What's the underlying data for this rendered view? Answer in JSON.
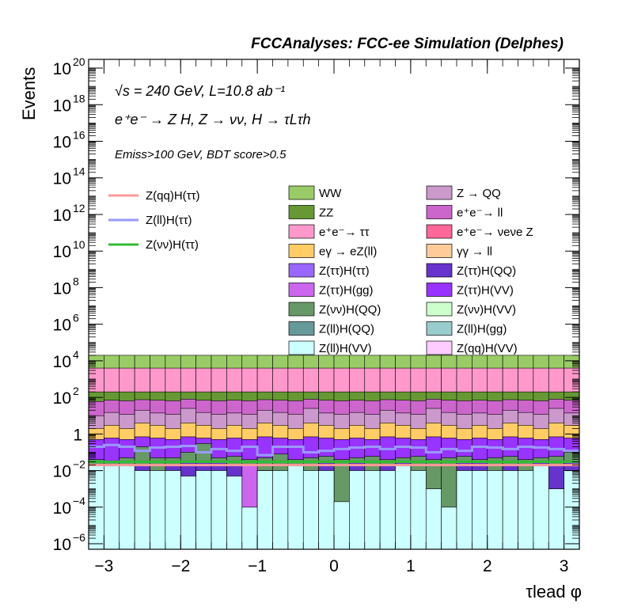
{
  "chart_data": {
    "type": "bar",
    "stacked": true,
    "header": "FCCAnalyses: FCC-ee Simulation (Delphes)",
    "annotations": [
      "√s = 240 GeV, L=10.8 ab⁻¹",
      "e⁺e⁻ → Z H, Z → νν, H → τLτh",
      "Emiss>100 GeV, BDT score>0.5"
    ],
    "xlabel": "τlead φ",
    "ylabel": "Events",
    "yscale": "log",
    "xlim": [
      -3.2,
      3.2
    ],
    "ylim": [
      5e-07,
      3e+20
    ],
    "xticks": [
      "−3",
      "−2",
      "−1",
      "0",
      "1",
      "2",
      "3"
    ],
    "xtick_values": [
      -3,
      -2,
      -1,
      0,
      1,
      2,
      3
    ],
    "yticks": [
      {
        "base": "10",
        "exp": "−6",
        "value": 1e-06
      },
      {
        "base": "10",
        "exp": "−4",
        "value": 0.0001
      },
      {
        "base": "10",
        "exp": "−2",
        "value": 0.01
      },
      {
        "base": "1",
        "exp": "",
        "value": 1
      },
      {
        "base": "10",
        "exp": "2",
        "value": 100.0
      },
      {
        "base": "10",
        "exp": "4",
        "value": 10000.0
      },
      {
        "base": "10",
        "exp": "6",
        "value": 1000000.0
      },
      {
        "base": "10",
        "exp": "8",
        "value": 100000000.0
      },
      {
        "base": "10",
        "exp": "10",
        "value": 10000000000.0
      },
      {
        "base": "10",
        "exp": "12",
        "value": 1000000000000.0
      },
      {
        "base": "10",
        "exp": "14",
        "value": 100000000000000.0
      },
      {
        "base": "10",
        "exp": "16",
        "value": 1e+16
      },
      {
        "base": "10",
        "exp": "18",
        "value": 1e+18
      },
      {
        "base": "10",
        "exp": "20",
        "value": 1e+20
      }
    ],
    "bins": 32,
    "stack_totals": [
      20000,
      20000,
      20000,
      20000,
      20000,
      20000,
      20000,
      20000,
      20000,
      20000,
      20000,
      20000,
      20000,
      20000,
      20000,
      20000,
      20000,
      20000,
      20000,
      20000,
      20000,
      20000,
      20000,
      20000,
      20000,
      20000,
      20000,
      20000,
      20000,
      20000,
      20000,
      20000
    ],
    "stack_layers": [
      {
        "name": "Z(ll)H(VV)",
        "color": "#ccffff",
        "top": [
          0.02,
          0.02,
          0.02,
          0.01,
          0.01,
          0.01,
          0.005,
          0.01,
          0.01,
          0.005,
          0.0001,
          0.01,
          0.01,
          0.02,
          0.01,
          0.01,
          0.0002,
          0.01,
          0.01,
          0.01,
          0.02,
          0.01,
          0.001,
          0.0001,
          0.01,
          0.01,
          0.01,
          0.01,
          0.01,
          0.02,
          0.001,
          0.01
        ]
      },
      {
        "name": "Z(ττ)H(QQ)",
        "color": "#6633cc",
        "top": [
          0.02,
          1e-05,
          1e-05,
          0.02,
          1e-05,
          0.02,
          0.03,
          0.03,
          0.03,
          0.02,
          0.0001,
          0.01,
          0.0003,
          0.02,
          0.0002,
          0.03,
          0.0002,
          0.03,
          0.0001,
          0.02,
          0.03,
          0.001,
          0.0002,
          0.0001,
          0.03,
          0.03,
          0.0002,
          0.02,
          1e-05,
          0.03,
          0.02,
          0.03
        ]
      },
      {
        "name": "Z(ττ)H(gg)",
        "color": "#cc66ee",
        "top": [
          0.02,
          1e-05,
          1e-05,
          0.02,
          1e-05,
          0.02,
          0.03,
          0.03,
          0.03,
          0.02,
          0.02,
          0.01,
          0.0003,
          0.02,
          0.0002,
          0.03,
          0.0002,
          0.03,
          0.0001,
          0.02,
          0.03,
          0.001,
          0.0002,
          0.0001,
          0.03,
          0.03,
          0.0002,
          0.02,
          1e-05,
          0.03,
          0.02,
          0.03
        ]
      },
      {
        "name": "Z(ll)H(gg)",
        "color": "#99cccc",
        "top": [
          0.02,
          1e-05,
          1e-05,
          0.02,
          1e-05,
          0.02,
          0.03,
          0.03,
          0.03,
          0.02,
          0.02,
          0.01,
          0.0003,
          0.02,
          0.0002,
          0.03,
          0.0002,
          0.03,
          0.0001,
          0.02,
          0.03,
          0.001,
          0.0002,
          0.0001,
          0.03,
          0.03,
          0.0002,
          0.02,
          1e-05,
          0.03,
          0.02,
          0.03
        ]
      },
      {
        "name": "Z(νν)H(QQ)",
        "color": "#669966",
        "top": [
          0.04,
          0.03,
          0.05,
          0.2,
          0.05,
          0.05,
          0.1,
          0.3,
          0.05,
          0.06,
          0.04,
          0.05,
          0.08,
          0.04,
          0.05,
          0.06,
          0.04,
          0.05,
          0.06,
          0.04,
          0.05,
          0.06,
          0.04,
          0.05,
          0.06,
          0.04,
          0.05,
          0.06,
          0.04,
          0.05,
          0.06,
          0.1
        ]
      },
      {
        "name": "Z(ττ)H(VV)",
        "color": "#9933ff",
        "top": [
          0.5,
          0.6,
          0.5,
          0.7,
          0.6,
          0.5,
          0.7,
          0.6,
          0.5,
          0.6,
          0.5,
          0.7,
          0.6,
          0.5,
          0.7,
          0.6,
          0.5,
          0.6,
          0.5,
          0.7,
          0.6,
          0.5,
          0.7,
          0.6,
          0.5,
          0.6,
          0.5,
          0.7,
          0.6,
          0.5,
          0.7,
          0.6
        ]
      },
      {
        "name": "eγ → eZ(ll)",
        "color": "#ffcc66",
        "top": [
          2,
          3,
          2,
          4,
          3,
          2,
          4,
          3,
          2,
          3,
          2,
          4,
          3,
          2,
          4,
          3,
          2,
          3,
          2,
          4,
          3,
          2,
          4,
          3,
          2,
          3,
          2,
          4,
          3,
          2,
          4,
          3
        ]
      },
      {
        "name": "Z → QQ",
        "color": "#cc99cc",
        "top": [
          10,
          15,
          12,
          20,
          14,
          12,
          25,
          15,
          12,
          14,
          12,
          20,
          15,
          12,
          25,
          14,
          12,
          15,
          12,
          20,
          14,
          12,
          25,
          15,
          12,
          14,
          12,
          20,
          15,
          12,
          25,
          14
        ]
      },
      {
        "name": "e⁺e⁻→ ll",
        "color": "#cc66cc",
        "top": [
          60,
          70,
          65,
          75,
          70,
          65,
          80,
          70,
          65,
          70,
          65,
          75,
          70,
          65,
          80,
          70,
          65,
          70,
          65,
          75,
          70,
          65,
          80,
          70,
          65,
          70,
          65,
          75,
          70,
          65,
          80,
          70
        ]
      },
      {
        "name": "ZZ",
        "color": "#669933",
        "top": [
          200,
          200,
          200,
          200,
          200,
          200,
          200,
          200,
          200,
          200,
          200,
          200,
          200,
          200,
          200,
          200,
          200,
          200,
          200,
          200,
          200,
          200,
          200,
          200,
          200,
          200,
          200,
          200,
          200,
          200,
          200,
          200
        ]
      },
      {
        "name": "e⁺e⁻→ ττ",
        "color": "#ff99cc",
        "top": [
          4000,
          4000,
          4000,
          4000,
          4000,
          4000,
          4000,
          4000,
          4000,
          4000,
          4000,
          4000,
          4000,
          4000,
          4000,
          4000,
          4000,
          4000,
          4000,
          4000,
          4000,
          4000,
          4000,
          4000,
          4000,
          4000,
          4000,
          4000,
          4000,
          4000,
          4000,
          4000
        ]
      },
      {
        "name": "WW",
        "color": "#99cc66",
        "top": [
          20000,
          20000,
          20000,
          20000,
          20000,
          20000,
          20000,
          20000,
          20000,
          20000,
          20000,
          20000,
          20000,
          20000,
          20000,
          20000,
          20000,
          20000,
          20000,
          20000,
          20000,
          20000,
          20000,
          20000,
          20000,
          20000,
          20000,
          20000,
          20000,
          20000,
          20000,
          20000
        ]
      }
    ],
    "signals": [
      {
        "name": "Z(qq)H(ττ)",
        "color": "#ff9999",
        "values": [
          0.02,
          0.02,
          0.02,
          0.02,
          0.02,
          0.02,
          0.02,
          0.02,
          0.02,
          0.02,
          0.02,
          0.02,
          0.02,
          0.02,
          0.02,
          0.02,
          0.02,
          0.02,
          0.02,
          0.02,
          0.02,
          0.02,
          0.02,
          0.02,
          0.02,
          0.02,
          0.02,
          0.02,
          0.02,
          0.02,
          0.02,
          0.02
        ]
      },
      {
        "name": "Z(ll)H(ττ)",
        "color": "#9999ff",
        "values": [
          0.2,
          0.25,
          0.2,
          0.12,
          0.18,
          0.2,
          0.22,
          0.1,
          0.15,
          0.12,
          0.2,
          0.07,
          0.2,
          0.2,
          0.1,
          0.12,
          0.15,
          0.18,
          0.2,
          0.15,
          0.2,
          0.18,
          0.1,
          0.15,
          0.12,
          0.2,
          0.18,
          0.15,
          0.2,
          0.18,
          0.15,
          0.12
        ]
      },
      {
        "name": "Z(νν)H(ττ)",
        "color": "#33bb33",
        "values": [
          0.03,
          0.03,
          0.03,
          0.03,
          0.03,
          0.03,
          0.03,
          0.03,
          0.03,
          0.03,
          0.03,
          0.03,
          0.03,
          0.03,
          0.03,
          0.03,
          0.03,
          0.03,
          0.03,
          0.03,
          0.03,
          0.03,
          0.03,
          0.03,
          0.03,
          0.03,
          0.03,
          0.03,
          0.03,
          0.03,
          0.03,
          0.03
        ]
      }
    ],
    "legend_signals": [
      {
        "name": "Z(qq)H(ττ)",
        "color": "#ff9999"
      },
      {
        "name": "Z(ll)H(ττ)",
        "color": "#9999ff"
      },
      {
        "name": "Z(νν)H(ττ)",
        "color": "#33bb33"
      }
    ],
    "legend_backgrounds": [
      {
        "name": "WW",
        "color": "#99cc66"
      },
      {
        "name": "Z → QQ",
        "color": "#cc99cc"
      },
      {
        "name": "ZZ",
        "color": "#669933"
      },
      {
        "name": "e⁺e⁻→ ll",
        "color": "#cc66cc"
      },
      {
        "name": "e⁺e⁻→ ττ",
        "color": "#ff99cc"
      },
      {
        "name": "e⁺e⁻→ νeνe Z",
        "color": "#ff6699"
      },
      {
        "name": "eγ → eZ(ll)",
        "color": "#ffcc66"
      },
      {
        "name": "γγ → ll",
        "color": "#ffcc99"
      },
      {
        "name": "Z(ττ)H(ττ)",
        "color": "#9966ff"
      },
      {
        "name": "Z(ττ)H(QQ)",
        "color": "#6633cc"
      },
      {
        "name": "Z(ττ)H(gg)",
        "color": "#cc66ee"
      },
      {
        "name": "Z(ττ)H(VV)",
        "color": "#9933ff"
      },
      {
        "name": "Z(νν)H(QQ)",
        "color": "#669966"
      },
      {
        "name": "Z(νν)H(VV)",
        "color": "#ccffcc"
      },
      {
        "name": "Z(ll)H(QQ)",
        "color": "#669999"
      },
      {
        "name": "Z(ll)H(gg)",
        "color": "#99cccc"
      },
      {
        "name": "Z(ll)H(VV)",
        "color": "#ccffff"
      },
      {
        "name": "Z(qq)H(VV)",
        "color": "#ffccff"
      }
    ]
  }
}
